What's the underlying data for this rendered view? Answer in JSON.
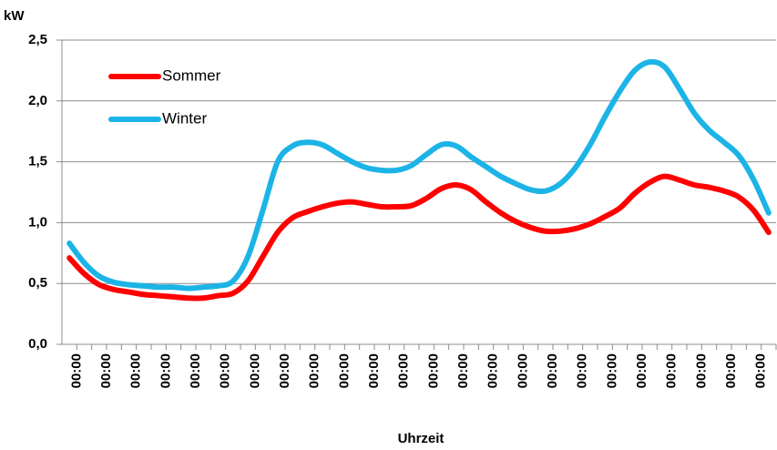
{
  "chart_data": {
    "type": "line",
    "y_label": "kW",
    "x_label": "Uhrzeit",
    "categories": [
      "00:00",
      null,
      "00:00",
      null,
      "00:00",
      null,
      "00:00",
      null,
      "00:00",
      null,
      "00:00",
      null,
      "00:00",
      null,
      "00:00",
      null,
      "00:00",
      null,
      "00:00",
      null,
      "00:00",
      null,
      "00:00",
      null,
      "00:00",
      null,
      "00:00",
      null,
      "00:00",
      null,
      "00:00",
      null,
      "00:00",
      null,
      "00:00",
      null,
      "00:00",
      null,
      "00:00",
      null,
      "00:00",
      null,
      "00:00",
      null,
      "00:00",
      null,
      "00:00",
      null
    ],
    "series": [
      {
        "name": "Sommer",
        "color": "#ff0000",
        "values": [
          0.71,
          0.58,
          0.49,
          0.45,
          0.43,
          0.41,
          0.4,
          0.39,
          0.38,
          0.38,
          0.4,
          0.42,
          0.52,
          0.72,
          0.92,
          1.04,
          1.09,
          1.13,
          1.16,
          1.17,
          1.15,
          1.13,
          1.13,
          1.14,
          1.2,
          1.28,
          1.31,
          1.27,
          1.17,
          1.08,
          1.01,
          0.96,
          0.93,
          0.93,
          0.95,
          0.99,
          1.05,
          1.12,
          1.24,
          1.33,
          1.38,
          1.35,
          1.31,
          1.29,
          1.26,
          1.21,
          1.1,
          0.92
        ]
      },
      {
        "name": "Winter",
        "color": "#1cb4e6",
        "values": [
          0.83,
          0.67,
          0.56,
          0.51,
          0.49,
          0.48,
          0.47,
          0.47,
          0.46,
          0.47,
          0.48,
          0.52,
          0.72,
          1.1,
          1.5,
          1.63,
          1.66,
          1.64,
          1.57,
          1.5,
          1.45,
          1.43,
          1.43,
          1.47,
          1.56,
          1.64,
          1.63,
          1.54,
          1.46,
          1.38,
          1.32,
          1.27,
          1.26,
          1.32,
          1.45,
          1.64,
          1.87,
          2.08,
          2.25,
          2.32,
          2.28,
          2.1,
          1.9,
          1.76,
          1.66,
          1.55,
          1.35,
          1.08
        ]
      }
    ],
    "ylim": [
      0,
      2.5
    ],
    "yticks": [
      {
        "value": 0,
        "label": "0,0"
      },
      {
        "value": 0.5,
        "label": "0,5"
      },
      {
        "value": 1,
        "label": "1,0"
      },
      {
        "value": 1.5,
        "label": "1,5"
      },
      {
        "value": 2,
        "label": "2,0"
      },
      {
        "value": 2.5,
        "label": "2,5"
      }
    ],
    "grid": true
  }
}
